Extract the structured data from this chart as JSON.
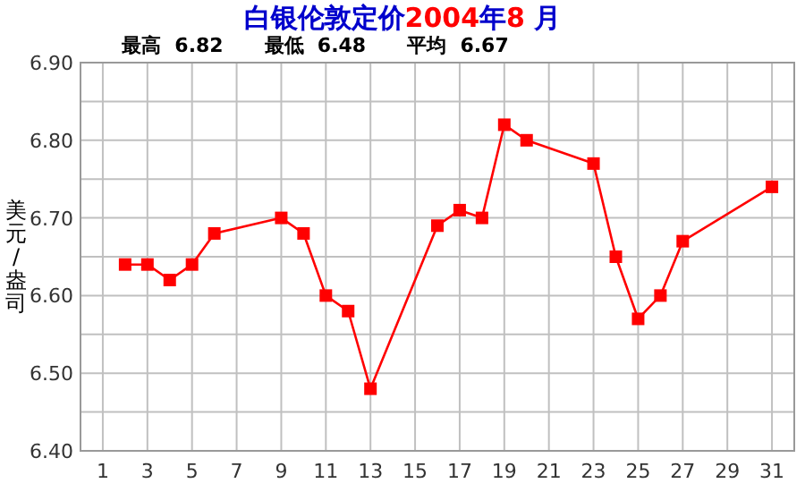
{
  "chart_data": {
    "type": "line",
    "title": "白银伦敦定价2004年8 月",
    "subtitle": "最高  6.82      最低  6.48      平均  6.67",
    "ylabel": "美元/盎司",
    "x": [
      2,
      3,
      4,
      5,
      6,
      9,
      10,
      11,
      12,
      13,
      16,
      17,
      18,
      19,
      20,
      23,
      24,
      25,
      26,
      27,
      31
    ],
    "series": [
      {
        "color": "#ff0000",
        "values": [
          6.64,
          6.64,
          6.62,
          6.64,
          6.68,
          6.7,
          6.68,
          6.6,
          6.58,
          6.48,
          6.69,
          6.71,
          6.7,
          6.82,
          6.8,
          6.77,
          6.65,
          6.57,
          6.6,
          6.67,
          6.74
        ]
      }
    ],
    "xlim": [
      0,
      32
    ],
    "xticks": [
      1,
      3,
      5,
      7,
      9,
      11,
      13,
      15,
      17,
      19,
      21,
      23,
      25,
      27,
      29,
      31
    ],
    "ylim": [
      6.4,
      6.9
    ],
    "yticks": [
      {
        "value": 6.4,
        "label": "6.40"
      },
      {
        "value": 6.45,
        "label": null
      },
      {
        "value": 6.5,
        "label": "6.50"
      },
      {
        "value": 6.55,
        "label": null
      },
      {
        "value": 6.6,
        "label": "6.60"
      },
      {
        "value": 6.65,
        "label": null
      },
      {
        "value": 6.7,
        "label": "6.70"
      },
      {
        "value": 6.75,
        "label": null
      },
      {
        "value": 6.8,
        "label": "6.80"
      },
      {
        "value": 6.85,
        "label": null
      },
      {
        "value": 6.9,
        "label": "6.90"
      }
    ],
    "grid": true,
    "marker": "square",
    "line_style": "solid"
  }
}
